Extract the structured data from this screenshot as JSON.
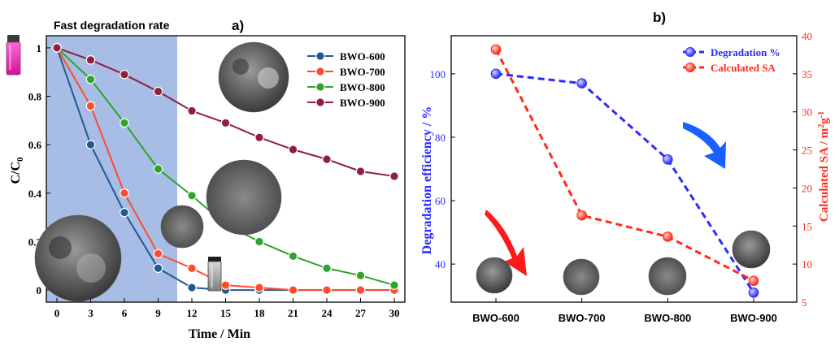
{
  "chart_data": [
    {
      "panel": "a)",
      "type": "line",
      "title": "Fast degradation rate",
      "xlabel": "Time / Min",
      "ylabel": "C/C0",
      "ylabel_main": "C/C",
      "ylabel_sub": "0",
      "xlim": [
        0,
        30
      ],
      "ylim": [
        -0.05,
        1.05
      ],
      "xticks": [
        0,
        3,
        6,
        9,
        12,
        15,
        18,
        21,
        24,
        27,
        30
      ],
      "yticks": [
        0,
        0.2,
        0.4,
        0.6,
        0.8,
        1
      ],
      "xtick_labels": [
        "0",
        "3",
        "6",
        "9",
        "12",
        "15",
        "18",
        "21",
        "24",
        "27",
        "30"
      ],
      "ytick_labels": [
        "0",
        "0.2",
        "0.4",
        "0.6",
        "0.8",
        "1"
      ],
      "highlight_region_x": [
        0,
        10.7
      ],
      "highlight_color": "#a7bde6",
      "legend_position": "top-right",
      "grid": false,
      "series": [
        {
          "name": "BWO-600",
          "color": "#1f5a96",
          "x": [
            0,
            3,
            6,
            9,
            12,
            15,
            18,
            30
          ],
          "values": [
            1.0,
            0.6,
            0.32,
            0.09,
            0.01,
            0.0,
            0.0,
            0.0
          ]
        },
        {
          "name": "BWO-700",
          "color": "#ff4b2b",
          "x": [
            0,
            3,
            6,
            9,
            12,
            15,
            18,
            21,
            24,
            27,
            30
          ],
          "values": [
            1.0,
            0.76,
            0.4,
            0.15,
            0.09,
            0.02,
            0.01,
            0.0,
            0.0,
            0.0,
            0.0
          ]
        },
        {
          "name": "BWO-800",
          "color": "#2ea42a",
          "x": [
            0,
            3,
            6,
            9,
            12,
            15,
            18,
            21,
            24,
            27,
            30
          ],
          "values": [
            1.0,
            0.87,
            0.69,
            0.5,
            0.39,
            0.27,
            0.2,
            0.14,
            0.09,
            0.06,
            0.02
          ]
        },
        {
          "name": "BWO-900",
          "color": "#8e1f3f",
          "x": [
            0,
            3,
            6,
            9,
            12,
            15,
            18,
            21,
            24,
            27,
            30
          ],
          "values": [
            1.0,
            0.95,
            0.89,
            0.82,
            0.74,
            0.69,
            0.63,
            0.58,
            0.54,
            0.49,
            0.47
          ]
        }
      ]
    },
    {
      "panel": "b)",
      "type": "line",
      "title": "",
      "xlabel": "",
      "categories": [
        "BWO-600",
        "BWO-700",
        "BWO-800",
        "BWO-900"
      ],
      "ylabel_left": "Degradation efficiency / %",
      "ylabel_right": "Calculated SA / m2g-1",
      "ylabel_right_main": "Calculated SA / m",
      "ylabel_right_sup1": "2",
      "ylabel_right_mid": "g",
      "ylabel_right_sup2": "-1",
      "ylim_left": [
        28,
        112
      ],
      "ylim_right": [
        5,
        40
      ],
      "yticks_left": [
        40,
        60,
        80,
        100
      ],
      "yticks_right": [
        5,
        10,
        15,
        20,
        25,
        30,
        35,
        40
      ],
      "ytick_labels_left": [
        "40",
        "60",
        "80",
        "100"
      ],
      "ytick_labels_right": [
        "5",
        "10",
        "15",
        "20",
        "25",
        "30",
        "35",
        "40"
      ],
      "legend_position": "top-right",
      "grid": false,
      "series": [
        {
          "name": "Degradation %",
          "axis": "left",
          "color": "#2a2aff",
          "values": [
            100,
            97,
            73,
            31
          ]
        },
        {
          "name": "Calculated SA",
          "axis": "right",
          "color": "#ff2a1a",
          "values": [
            38.2,
            16.4,
            13.6,
            7.8
          ]
        }
      ],
      "arrow_colors": {
        "red": "#ff1a1a",
        "blue": "#1a5fff"
      }
    }
  ]
}
